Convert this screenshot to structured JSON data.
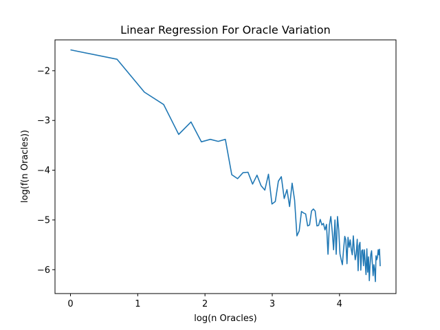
{
  "chart_data": {
    "type": "line",
    "title": "Linear Regression For Oracle Variation",
    "xlabel": "log(n Oracles)",
    "ylabel": "log(f(n Oracles))",
    "xlim": [
      -0.23,
      4.84
    ],
    "ylim": [
      -6.48,
      -1.38
    ],
    "xticks": [
      0,
      1,
      2,
      3,
      4
    ],
    "yticks": [
      -6,
      -5,
      -4,
      -3,
      -2
    ],
    "grid": false,
    "color": "#1f77b4",
    "series": [
      {
        "points": [
          [
            0.0,
            -1.58
          ],
          [
            0.693,
            -1.77
          ],
          [
            1.099,
            -2.43
          ],
          [
            1.386,
            -2.68
          ],
          [
            1.609,
            -3.28
          ],
          [
            1.792,
            -3.03
          ],
          [
            1.946,
            -3.43
          ],
          [
            2.079,
            -3.38
          ],
          [
            2.197,
            -3.42
          ],
          [
            2.303,
            -3.38
          ],
          [
            2.398,
            -4.09
          ],
          [
            2.485,
            -4.17
          ],
          [
            2.565,
            -4.05
          ],
          [
            2.639,
            -4.04
          ],
          [
            2.708,
            -4.28
          ],
          [
            2.773,
            -4.1
          ],
          [
            2.833,
            -4.31
          ],
          [
            2.89,
            -4.4
          ],
          [
            2.944,
            -4.08
          ],
          [
            2.996,
            -4.68
          ],
          [
            3.045,
            -4.63
          ],
          [
            3.091,
            -4.22
          ],
          [
            3.135,
            -4.13
          ],
          [
            3.178,
            -4.57
          ],
          [
            3.219,
            -4.39
          ],
          [
            3.258,
            -4.73
          ],
          [
            3.296,
            -4.26
          ],
          [
            3.332,
            -4.6
          ],
          [
            3.367,
            -5.32
          ],
          [
            3.401,
            -5.22
          ],
          [
            3.434,
            -4.83
          ],
          [
            3.466,
            -4.86
          ],
          [
            3.497,
            -4.88
          ],
          [
            3.526,
            -5.12
          ],
          [
            3.555,
            -5.1
          ],
          [
            3.584,
            -4.82
          ],
          [
            3.611,
            -4.78
          ],
          [
            3.638,
            -4.82
          ],
          [
            3.664,
            -5.12
          ],
          [
            3.689,
            -5.11
          ],
          [
            3.714,
            -4.99
          ],
          [
            3.738,
            -5.1
          ],
          [
            3.761,
            -5.07
          ],
          [
            3.784,
            -5.2
          ],
          [
            3.807,
            -5.09
          ],
          [
            3.829,
            -5.69
          ],
          [
            3.85,
            -5.1
          ],
          [
            3.871,
            -4.93
          ],
          [
            3.892,
            -5.24
          ],
          [
            3.912,
            -5.6
          ],
          [
            3.932,
            -5.0
          ],
          [
            3.951,
            -5.69
          ],
          [
            3.97,
            -4.93
          ],
          [
            3.989,
            -5.2
          ],
          [
            4.007,
            -5.68
          ],
          [
            4.025,
            -5.8
          ],
          [
            4.043,
            -5.9
          ],
          [
            4.06,
            -5.6
          ],
          [
            4.078,
            -5.33
          ],
          [
            4.094,
            -5.4
          ],
          [
            4.111,
            -5.88
          ],
          [
            4.127,
            -5.35
          ],
          [
            4.143,
            -5.55
          ],
          [
            4.159,
            -5.4
          ],
          [
            4.174,
            -5.58
          ],
          [
            4.19,
            -5.7
          ],
          [
            4.205,
            -5.32
          ],
          [
            4.22,
            -5.6
          ],
          [
            4.234,
            -5.8
          ],
          [
            4.248,
            -5.69
          ],
          [
            4.263,
            -5.39
          ],
          [
            4.277,
            -6.02
          ],
          [
            4.29,
            -5.52
          ],
          [
            4.304,
            -5.45
          ],
          [
            4.317,
            -6.01
          ],
          [
            4.331,
            -5.62
          ],
          [
            4.344,
            -5.6
          ],
          [
            4.357,
            -5.92
          ],
          [
            4.369,
            -5.6
          ],
          [
            4.382,
            -5.86
          ],
          [
            4.394,
            -6.1
          ],
          [
            4.407,
            -5.58
          ],
          [
            4.419,
            -6.05
          ],
          [
            4.431,
            -5.74
          ],
          [
            4.443,
            -6.22
          ],
          [
            4.454,
            -5.92
          ],
          [
            4.466,
            -5.69
          ],
          [
            4.477,
            -5.62
          ],
          [
            4.489,
            -5.9
          ],
          [
            4.5,
            -6.12
          ],
          [
            4.511,
            -5.9
          ],
          [
            4.522,
            -6.0
          ],
          [
            4.533,
            -6.24
          ],
          [
            4.543,
            -5.72
          ],
          [
            4.554,
            -5.8
          ],
          [
            4.564,
            -5.75
          ],
          [
            4.575,
            -5.6
          ],
          [
            4.585,
            -5.7
          ],
          [
            4.595,
            -5.59
          ],
          [
            4.605,
            -5.93
          ]
        ]
      }
    ]
  }
}
